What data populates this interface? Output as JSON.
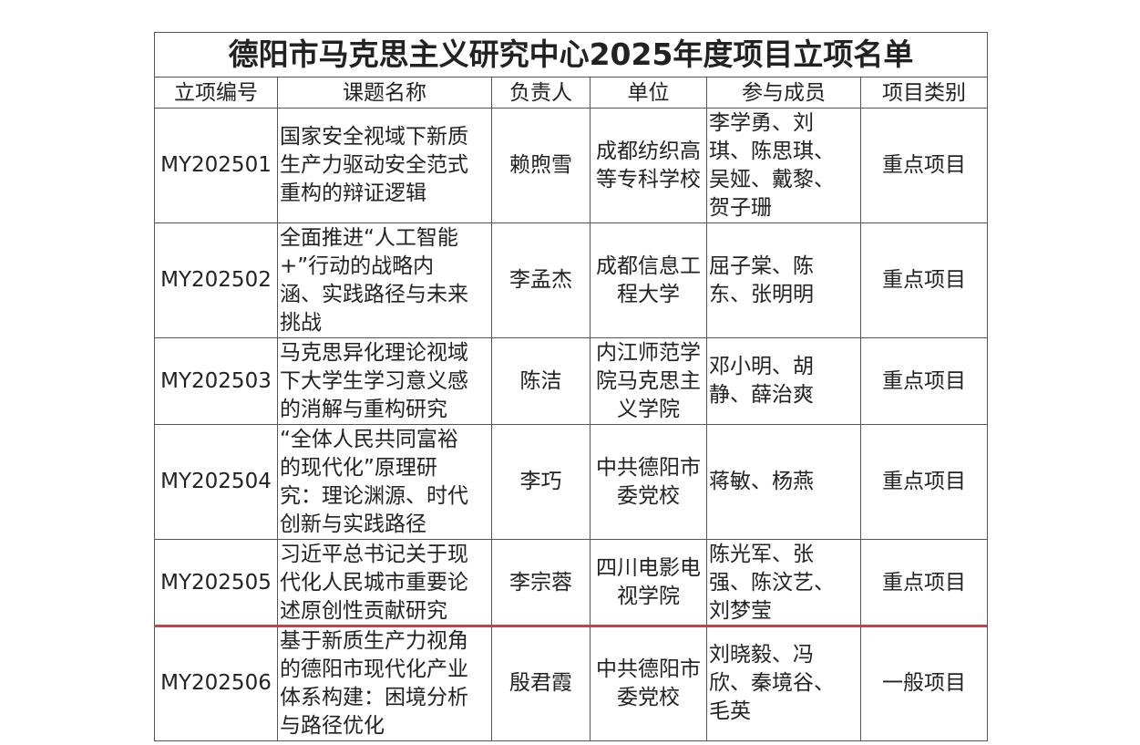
{
  "title": "德阳市马克思主义研究中心2025年度项目立项名单",
  "columns": [
    "立项编号",
    "课题名称",
    "负责人",
    "单位",
    "参与成员",
    "项目类别"
  ],
  "rows": [
    {
      "id": "MY202501",
      "topic": "国家安全视域下新质\n生产力驱动安全范式\n重构的辩证逻辑",
      "leader": "赖煦雪",
      "unit": "成都纺织高\n等专科学校",
      "members": "李学勇、刘\n琪、陈思琪、\n吴娅、戴黎、\n贺子珊",
      "category": "重点项目"
    },
    {
      "id": "MY202502",
      "topic": "全面推进“人工智能\n+”行动的战略内\n涵、实践路径与未来\n挑战",
      "leader": "李孟杰",
      "unit": "成都信息工\n程大学",
      "members": "屈子棠、陈\n东、张明明",
      "category": "重点项目"
    },
    {
      "id": "MY202503",
      "topic": "马克思异化理论视域\n下大学生学习意义感\n的消解与重构研究",
      "leader": "陈洁",
      "unit": "内江师范学\n院马克思主\n义学院",
      "members": "邓小明、胡\n静、薛治爽",
      "category": "重点项目"
    },
    {
      "id": "MY202504",
      "topic": "“全体人民共同富裕\n的现代化”原理研\n究：理论渊源、时代\n创新与实践路径",
      "leader": "李巧",
      "unit": "中共德阳市\n委党校",
      "members": "蒋敏、杨燕",
      "category": "重点项目"
    },
    {
      "id": "MY202505",
      "topic": "习近平总书记关于现\n代化人民城市重要论\n述原创性贡献研究",
      "leader": "李宗蓉",
      "unit": "四川电影电\n视学院",
      "members": "陈光军、张\n强、陈汶艺、\n刘梦莹",
      "category": "重点项目"
    },
    {
      "id": "MY202506",
      "topic": "基于新质生产力视角\n的德阳市现代化产业\n体系构建：困境分析\n与路径优化",
      "leader": "殷君霞",
      "unit": "中共德阳市\n委党校",
      "members": "刘晓毅、冯\n欣、秦境谷、\n毛英",
      "category": "一般项目"
    }
  ],
  "colors": {
    "border": "#555555",
    "divider": "#c8404a"
  }
}
